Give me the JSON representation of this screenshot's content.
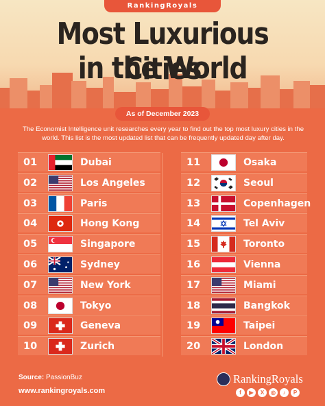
{
  "brand": "RankingRoyals",
  "title_line1": "Most Luxurious Cities",
  "title_line2": "in the World",
  "date_label": "As of December 2023",
  "intro": "The Economist Intelligence unit researches every year to find out the top most luxury cities in the world. This list is the most updated list that can be frequently updated day after day.",
  "left_list": [
    {
      "rank": "01",
      "city": "Dubai",
      "flag": "uae-flag-icon"
    },
    {
      "rank": "02",
      "city": "Los Angeles",
      "flag": "usa-flag-icon"
    },
    {
      "rank": "03",
      "city": "Paris",
      "flag": "france-flag-icon"
    },
    {
      "rank": "04",
      "city": "Hong Kong",
      "flag": "hong-kong-flag-icon"
    },
    {
      "rank": "05",
      "city": "Singapore",
      "flag": "singapore-flag-icon"
    },
    {
      "rank": "06",
      "city": "Sydney",
      "flag": "australia-flag-icon"
    },
    {
      "rank": "07",
      "city": "New York",
      "flag": "usa-flag-icon"
    },
    {
      "rank": "08",
      "city": "Tokyo",
      "flag": "japan-flag-icon"
    },
    {
      "rank": "09",
      "city": "Geneva",
      "flag": "switzerland-flag-icon"
    },
    {
      "rank": "10",
      "city": "Zurich",
      "flag": "switzerland-flag-icon"
    }
  ],
  "right_list": [
    {
      "rank": "11",
      "city": "Osaka",
      "flag": "japan-flag-icon"
    },
    {
      "rank": "12",
      "city": "Seoul",
      "flag": "south-korea-flag-icon"
    },
    {
      "rank": "13",
      "city": "Copenhagen",
      "flag": "denmark-flag-icon"
    },
    {
      "rank": "14",
      "city": "Tel Aviv",
      "flag": "israel-flag-icon"
    },
    {
      "rank": "15",
      "city": "Toronto",
      "flag": "canada-flag-icon"
    },
    {
      "rank": "16",
      "city": "Vienna",
      "flag": "austria-flag-icon"
    },
    {
      "rank": "17",
      "city": "Miami",
      "flag": "usa-flag-icon"
    },
    {
      "rank": "18",
      "city": "Bangkok",
      "flag": "thailand-flag-icon"
    },
    {
      "rank": "19",
      "city": "Taipei",
      "flag": "taiwan-flag-icon"
    },
    {
      "rank": "20",
      "city": "London",
      "flag": "uk-flag-icon"
    }
  ],
  "footer": {
    "source_label": "Source:",
    "source_value": "PassionBuz",
    "url": "www.rankingroyals.com",
    "brand": "RankingRoyals",
    "socials": [
      "facebook-icon",
      "youtube-icon",
      "x-icon",
      "instagram-icon",
      "tiktok-icon",
      "pinterest-icon"
    ]
  },
  "colors": {
    "background": "#ec6a45",
    "accent": "#e8563a",
    "title": "#2a241f"
  }
}
